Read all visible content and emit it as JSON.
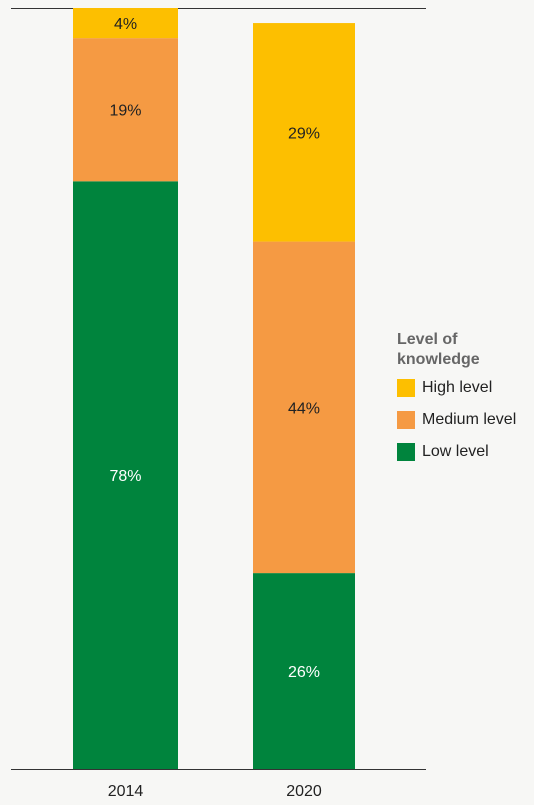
{
  "chart_data": {
    "type": "bar",
    "stacked": true,
    "categories": [
      "2014",
      "2020"
    ],
    "series": [
      {
        "name": "Low level",
        "values": [
          78,
          26
        ],
        "labels": [
          "78%",
          "26%"
        ],
        "color": "#00843d",
        "label_color": "#ffffff"
      },
      {
        "name": "Medium level",
        "values": [
          19,
          44
        ],
        "labels": [
          "19%",
          "44%"
        ],
        "color": "#f59a43",
        "label_color": "#222222"
      },
      {
        "name": "High level",
        "values": [
          4,
          29
        ],
        "labels": [
          "4%",
          "29%"
        ],
        "color": "#fdbf00",
        "label_color": "#222222"
      }
    ],
    "ylim": [
      0,
      101
    ],
    "grid": false,
    "legend": {
      "title": "Level of knowledge",
      "position": "right",
      "order": [
        "High level",
        "Medium level",
        "Low level"
      ]
    },
    "title": "",
    "xlabel": "",
    "ylabel": ""
  }
}
